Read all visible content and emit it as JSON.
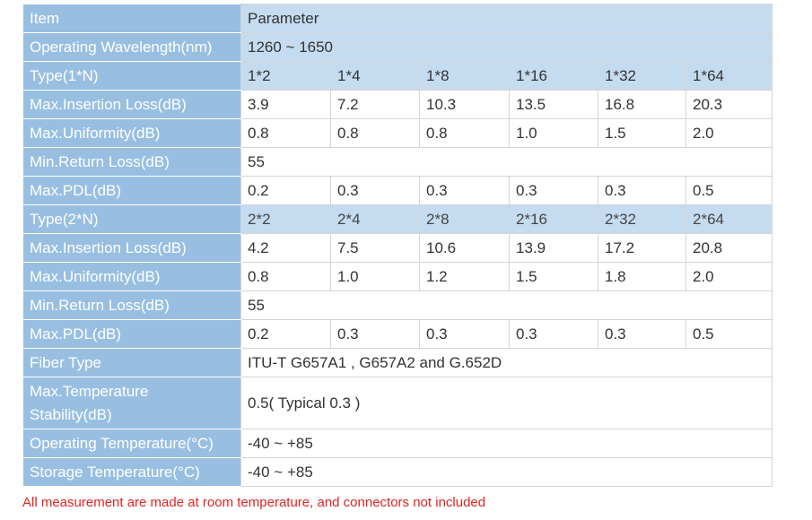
{
  "table": {
    "header": {
      "label": "Item",
      "value": "Parameter"
    },
    "wavelength": {
      "label": "Operating Wavelength(nm)",
      "value": "1260 ~ 1650"
    },
    "group1": {
      "type_label": "Type(1*N)",
      "types": [
        "1*2",
        "1*4",
        "1*8",
        "1*16",
        "1*32",
        "1*64"
      ],
      "il_label": "Max.Insertion Loss(dB)",
      "il": [
        "3.9",
        "7.2",
        "10.3",
        "13.5",
        "16.8",
        "20.3"
      ],
      "uni_label": "Max.Uniformity(dB)",
      "uni": [
        "0.8",
        "0.8",
        "0.8",
        "1.0",
        "1.5",
        "2.0"
      ],
      "rl_label": "Min.Return Loss(dB)",
      "rl": "55",
      "pdl_label": "Max.PDL(dB)",
      "pdl": [
        "0.2",
        "0.3",
        "0.3",
        "0.3",
        "0.3",
        "0.5"
      ]
    },
    "group2": {
      "type_label": "Type(2*N)",
      "types": [
        "2*2",
        "2*4",
        "2*8",
        "2*16",
        "2*32",
        "2*64"
      ],
      "il_label": "Max.Insertion Loss(dB)",
      "il": [
        "4.2",
        "7.5",
        "10.6",
        "13.9",
        "17.2",
        "20.8"
      ],
      "uni_label": "Max.Uniformity(dB)",
      "uni": [
        "0.8",
        "1.0",
        "1.2",
        "1.5",
        "1.8",
        "2.0"
      ],
      "rl_label": "Min.Return Loss(dB)",
      "rl": "55",
      "pdl_label": "Max.PDL(dB)",
      "pdl": [
        "0.2",
        "0.3",
        "0.3",
        "0.3",
        "0.3",
        "0.5"
      ]
    },
    "fiber": {
      "label": "Fiber Type",
      "value": "ITU-T G657A1 , G657A2 and G.652D"
    },
    "temp_stability": {
      "label": "Max.Temperature Stability(dB)",
      "value": "0.5( Typical 0.3 )"
    },
    "op_temp": {
      "label": "Operating Temperature(°C)",
      "value": "-40 ~ +85"
    },
    "storage_temp": {
      "label": "Storage Temperature(°C)",
      "value": "-40 ~ +85"
    }
  },
  "note": "All measurement are made at room temperature, and connectors not included",
  "colors": {
    "label_bg": "#98bfe1",
    "highlight_bg": "#c5dcf0",
    "note": "#e02424"
  }
}
